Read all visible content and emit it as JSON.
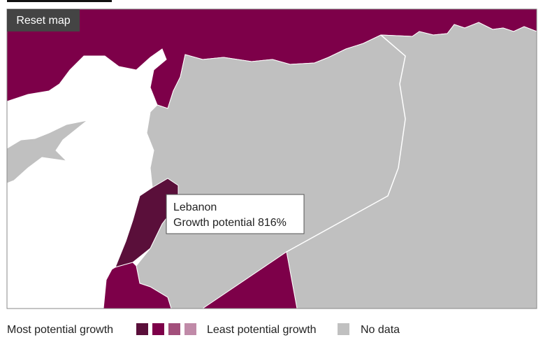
{
  "reset_button": "Reset map",
  "tooltip": {
    "title": "Lebanon",
    "text": "Growth potential 816%"
  },
  "legend": {
    "most": "Most potential growth",
    "least": "Least potential growth",
    "no_data": "No data"
  }
}
